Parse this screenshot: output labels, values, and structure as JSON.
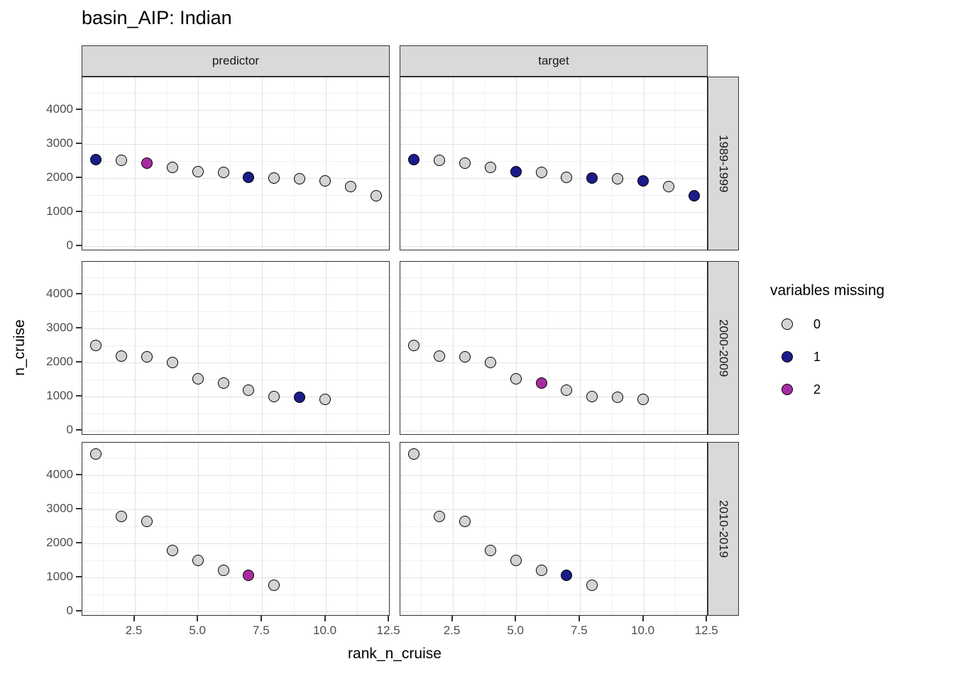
{
  "title": "basin_AIP: Indian",
  "axes": {
    "x_label": "rank_n_cruise",
    "y_label": "n_cruise",
    "x_tick_labels": [
      "2.5",
      "5.0",
      "7.5",
      "10.0",
      "12.5"
    ],
    "y_tick_labels": [
      "0",
      "1000",
      "2000",
      "3000",
      "4000"
    ]
  },
  "legend": {
    "title": "variables missing",
    "items": [
      {
        "label": "0",
        "color": "#d3d3d3"
      },
      {
        "label": "1",
        "color": "#1b1b8a"
      },
      {
        "label": "2",
        "color": "#a62ca2"
      }
    ]
  },
  "chart_data": {
    "type": "scatter",
    "title": "basin_AIP: Indian",
    "xlabel": "rank_n_cruise",
    "ylabel": "n_cruise",
    "facet_cols": [
      "predictor",
      "target"
    ],
    "facet_rows": [
      "1989-1999",
      "2000-2009",
      "2010-2019"
    ],
    "x_ticks": [
      2.5,
      5.0,
      7.5,
      10.0,
      12.5
    ],
    "y_ticks": [
      0,
      1000,
      2000,
      3000,
      4000
    ],
    "x_minor": [
      1.25,
      3.75,
      6.25,
      8.75,
      11.25
    ],
    "y_minor": [
      500,
      1500,
      2500,
      3500,
      4500
    ],
    "x_domain": [
      0.45,
      12.55
    ],
    "y_domain": [
      -150,
      4965
    ],
    "grid": true,
    "legend_title": "variables missing",
    "color_levels": [
      "0",
      "1",
      "2"
    ],
    "colors": {
      "0": "#d3d3d3",
      "1": "#1b1b8a",
      "2": "#a62ca2"
    },
    "panels": [
      {
        "col": "predictor",
        "row": "1989-1999",
        "x": [
          1,
          2,
          3,
          4,
          5,
          6,
          7,
          8,
          9,
          10,
          11,
          12
        ],
        "y": [
          2530,
          2510,
          2420,
          2300,
          2180,
          2160,
          2010,
          1990,
          1970,
          1910,
          1740,
          1460
        ],
        "missing": [
          1,
          0,
          2,
          0,
          0,
          0,
          1,
          0,
          0,
          0,
          0,
          0
        ]
      },
      {
        "col": "target",
        "row": "1989-1999",
        "x": [
          1,
          2,
          3,
          4,
          5,
          6,
          7,
          8,
          9,
          10,
          11,
          12
        ],
        "y": [
          2530,
          2510,
          2420,
          2300,
          2180,
          2160,
          2010,
          1990,
          1970,
          1910,
          1740,
          1460
        ],
        "missing": [
          1,
          0,
          0,
          0,
          1,
          0,
          0,
          1,
          0,
          1,
          0,
          1
        ]
      },
      {
        "col": "predictor",
        "row": "2000-2009",
        "x": [
          1,
          2,
          3,
          4,
          5,
          6,
          7,
          8,
          9,
          10
        ],
        "y": [
          2490,
          2180,
          2150,
          1980,
          1510,
          1390,
          1180,
          980,
          970,
          900
        ],
        "missing": [
          0,
          0,
          0,
          0,
          0,
          0,
          0,
          0,
          1,
          0
        ]
      },
      {
        "col": "target",
        "row": "2000-2009",
        "x": [
          1,
          2,
          3,
          4,
          5,
          6,
          7,
          8,
          9,
          10
        ],
        "y": [
          2490,
          2180,
          2150,
          1980,
          1510,
          1390,
          1180,
          980,
          970,
          900
        ],
        "missing": [
          0,
          0,
          0,
          0,
          0,
          2,
          0,
          0,
          0,
          0
        ]
      },
      {
        "col": "predictor",
        "row": "2010-2019",
        "x": [
          1,
          2,
          3,
          4,
          5,
          6,
          7,
          8
        ],
        "y": [
          4620,
          2780,
          2640,
          1790,
          1490,
          1200,
          1060,
          750
        ],
        "missing": [
          0,
          0,
          0,
          0,
          0,
          0,
          2,
          0
        ]
      },
      {
        "col": "target",
        "row": "2010-2019",
        "x": [
          1,
          2,
          3,
          4,
          5,
          6,
          7,
          8
        ],
        "y": [
          4620,
          2780,
          2640,
          1790,
          1490,
          1200,
          1060,
          750
        ],
        "missing": [
          0,
          0,
          0,
          0,
          0,
          0,
          1,
          0
        ]
      }
    ]
  }
}
